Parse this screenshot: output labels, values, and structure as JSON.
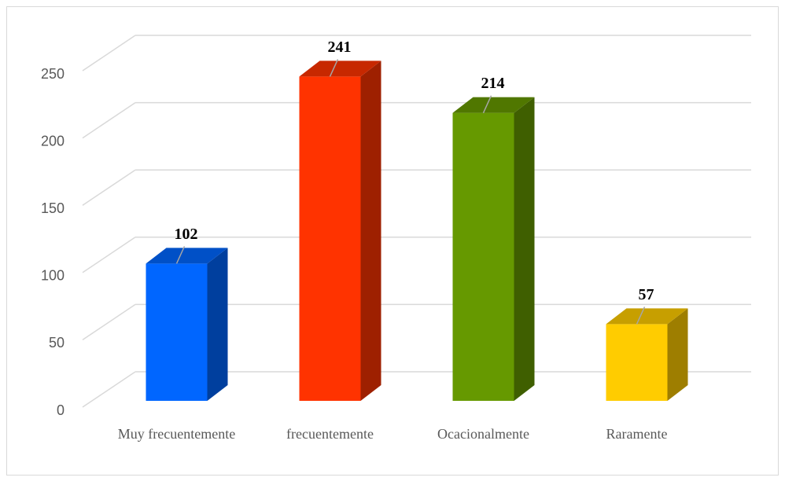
{
  "chart_data": {
    "type": "bar3d",
    "categories": [
      "Muy frecuentemente",
      "frecuentemente",
      "Ocacionalmente",
      "Raramente"
    ],
    "values": [
      102,
      241,
      214,
      57
    ],
    "colors": [
      "#0066ff",
      "#ff3300",
      "#669900",
      "#ffcc00"
    ],
    "ylim": [
      0,
      250
    ],
    "yticks": [
      0,
      50,
      100,
      150,
      200,
      250
    ],
    "grid": true
  }
}
